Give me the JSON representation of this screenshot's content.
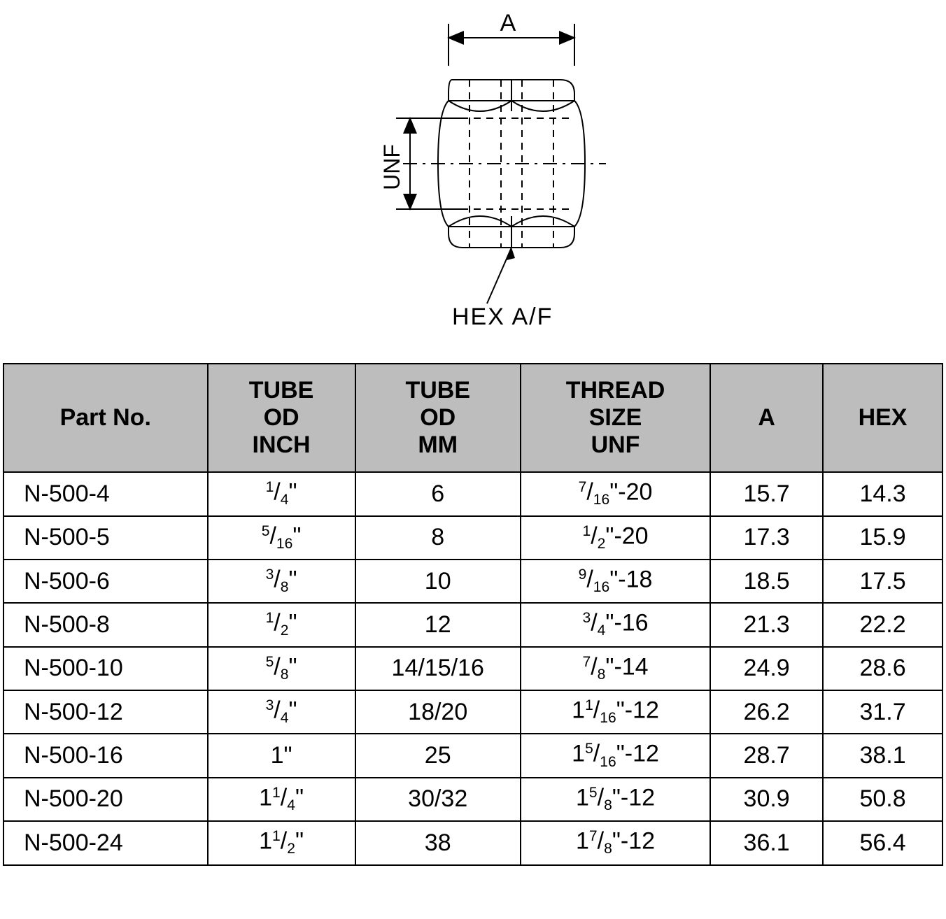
{
  "diagram": {
    "label_A": "A",
    "label_UNF": "UNF",
    "label_HEX": "HEX  A/F",
    "stroke": "#000000",
    "stroke_width": 2
  },
  "table": {
    "header_bg": "#bdbdbd",
    "border_color": "#000000",
    "font_family": "Arial, Helvetica, sans-serif",
    "header_fontsize_pt": 26,
    "cell_fontsize_pt": 26,
    "columns": [
      {
        "key": "part",
        "label_lines": [
          "Part No."
        ],
        "align": "left"
      },
      {
        "key": "od_in",
        "label_lines": [
          "TUBE",
          "OD",
          "INCH"
        ],
        "align": "center"
      },
      {
        "key": "od_mm",
        "label_lines": [
          "TUBE",
          "OD",
          "MM"
        ],
        "align": "center"
      },
      {
        "key": "thread",
        "label_lines": [
          "THREAD",
          "SIZE",
          "UNF"
        ],
        "align": "center"
      },
      {
        "key": "A",
        "label_lines": [
          "A"
        ],
        "align": "center"
      },
      {
        "key": "HEX",
        "label_lines": [
          "HEX"
        ],
        "align": "center"
      }
    ],
    "rows": [
      {
        "part": "N-500-4",
        "od_in": {
          "whole": "",
          "num": "1",
          "den": "4",
          "suffix": "\""
        },
        "od_mm": "6",
        "thread": {
          "whole": "",
          "num": "7",
          "den": "16",
          "suffix": "\"-20"
        },
        "A": "15.7",
        "HEX": "14.3"
      },
      {
        "part": "N-500-5",
        "od_in": {
          "whole": "",
          "num": "5",
          "den": "16",
          "suffix": "\""
        },
        "od_mm": "8",
        "thread": {
          "whole": "",
          "num": "1",
          "den": "2",
          "suffix": "\"-20"
        },
        "A": "17.3",
        "HEX": "15.9"
      },
      {
        "part": "N-500-6",
        "od_in": {
          "whole": "",
          "num": "3",
          "den": "8",
          "suffix": "\""
        },
        "od_mm": "10",
        "thread": {
          "whole": "",
          "num": "9",
          "den": "16",
          "suffix": "\"-18"
        },
        "A": "18.5",
        "HEX": "17.5"
      },
      {
        "part": "N-500-8",
        "od_in": {
          "whole": "",
          "num": "1",
          "den": "2",
          "suffix": "\""
        },
        "od_mm": "12",
        "thread": {
          "whole": "",
          "num": "3",
          "den": "4",
          "suffix": "\"-16"
        },
        "A": "21.3",
        "HEX": "22.2"
      },
      {
        "part": "N-500-10",
        "od_in": {
          "whole": "",
          "num": "5",
          "den": "8",
          "suffix": "\""
        },
        "od_mm": "14/15/16",
        "thread": {
          "whole": "",
          "num": "7",
          "den": "8",
          "suffix": "\"-14"
        },
        "A": "24.9",
        "HEX": "28.6"
      },
      {
        "part": "N-500-12",
        "od_in": {
          "whole": "",
          "num": "3",
          "den": "4",
          "suffix": "\""
        },
        "od_mm": "18/20",
        "thread": {
          "whole": "1",
          "num": "1",
          "den": "16",
          "suffix": "\"-12"
        },
        "A": "26.2",
        "HEX": "31.7"
      },
      {
        "part": "N-500-16",
        "od_in": {
          "whole": "1",
          "num": "",
          "den": "",
          "suffix": "\""
        },
        "od_mm": "25",
        "thread": {
          "whole": "1",
          "num": "5",
          "den": "16",
          "suffix": "\"-12"
        },
        "A": "28.7",
        "HEX": "38.1"
      },
      {
        "part": "N-500-20",
        "od_in": {
          "whole": "1",
          "num": "1",
          "den": "4",
          "suffix": "\""
        },
        "od_mm": "30/32",
        "thread": {
          "whole": "1",
          "num": "5",
          "den": "8",
          "suffix": "\"-12"
        },
        "A": "30.9",
        "HEX": "50.8"
      },
      {
        "part": "N-500-24",
        "od_in": {
          "whole": "1",
          "num": "1",
          "den": "2",
          "suffix": "\""
        },
        "od_mm": "38",
        "thread": {
          "whole": "1",
          "num": "7",
          "den": "8",
          "suffix": "\"-12"
        },
        "A": "36.1",
        "HEX": "56.4"
      }
    ]
  }
}
